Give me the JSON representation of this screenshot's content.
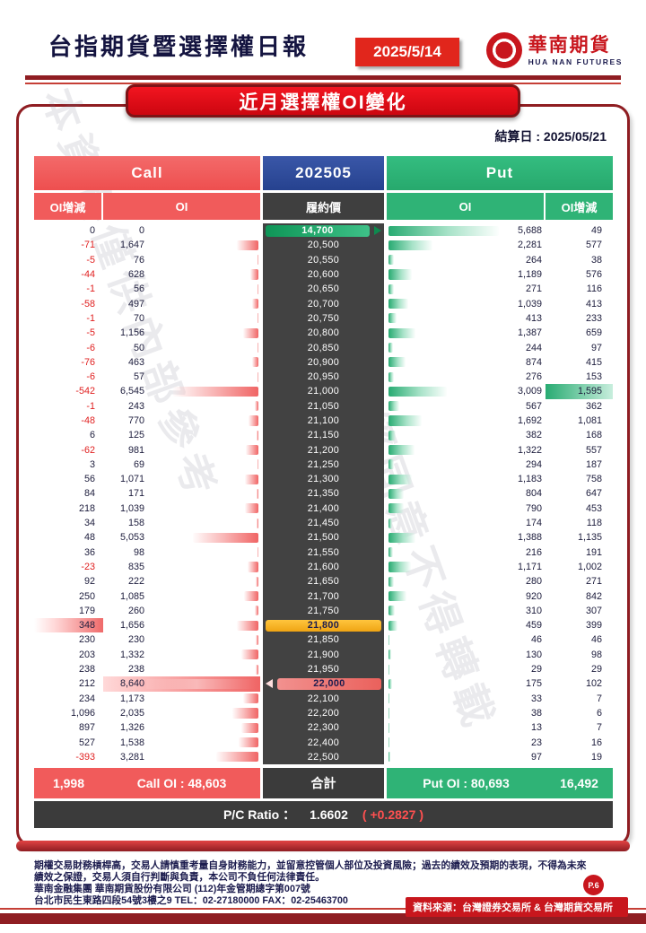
{
  "header": {
    "title": "台指期貨暨選擇權日報",
    "date": "2025/5/14",
    "logo_cn": "華南期貨",
    "logo_en": "HUA NAN FUTURES"
  },
  "banner": "近月選擇權OI變化",
  "settle_label": "結算日 : 2025/05/21",
  "watermarks": [
    "本資料僅供內部參考",
    "未經同意不得轉載"
  ],
  "table": {
    "call_header": "Call",
    "month_header": "202505",
    "put_header": "Put",
    "col_call_chg": "OI增減",
    "col_call_oi": "OI",
    "col_strike": "履約價",
    "col_put_oi": "OI",
    "col_put_chg": "OI增減",
    "rows": [
      {
        "cc": "0",
        "co": "0",
        "s": "14,700",
        "po": "5,688",
        "pc": "49",
        "sx": "green"
      },
      {
        "cc": "-71",
        "co": "1,647",
        "s": "20,500",
        "po": "2,281",
        "pc": "577"
      },
      {
        "cc": "-5",
        "co": "76",
        "s": "20,550",
        "po": "264",
        "pc": "38"
      },
      {
        "cc": "-44",
        "co": "628",
        "s": "20,600",
        "po": "1,189",
        "pc": "576"
      },
      {
        "cc": "-1",
        "co": "56",
        "s": "20,650",
        "po": "271",
        "pc": "116"
      },
      {
        "cc": "-58",
        "co": "497",
        "s": "20,700",
        "po": "1,039",
        "pc": "413"
      },
      {
        "cc": "-1",
        "co": "70",
        "s": "20,750",
        "po": "413",
        "pc": "233"
      },
      {
        "cc": "-5",
        "co": "1,156",
        "s": "20,800",
        "po": "1,387",
        "pc": "659"
      },
      {
        "cc": "-6",
        "co": "50",
        "s": "20,850",
        "po": "244",
        "pc": "97"
      },
      {
        "cc": "-76",
        "co": "463",
        "s": "20,900",
        "po": "874",
        "pc": "415"
      },
      {
        "cc": "-6",
        "co": "57",
        "s": "20,950",
        "po": "276",
        "pc": "153"
      },
      {
        "cc": "-542",
        "co": "6,545",
        "s": "21,000",
        "po": "3,009",
        "pc": "1,595",
        "pc_hl": true
      },
      {
        "cc": "-1",
        "co": "243",
        "s": "21,050",
        "po": "567",
        "pc": "362"
      },
      {
        "cc": "-48",
        "co": "770",
        "s": "21,100",
        "po": "1,692",
        "pc": "1,081"
      },
      {
        "cc": "6",
        "co": "125",
        "s": "21,150",
        "po": "382",
        "pc": "168"
      },
      {
        "cc": "-62",
        "co": "981",
        "s": "21,200",
        "po": "1,322",
        "pc": "557"
      },
      {
        "cc": "3",
        "co": "69",
        "s": "21,250",
        "po": "294",
        "pc": "187"
      },
      {
        "cc": "56",
        "co": "1,071",
        "s": "21,300",
        "po": "1,183",
        "pc": "758"
      },
      {
        "cc": "84",
        "co": "171",
        "s": "21,350",
        "po": "804",
        "pc": "647"
      },
      {
        "cc": "218",
        "co": "1,039",
        "s": "21,400",
        "po": "790",
        "pc": "453"
      },
      {
        "cc": "34",
        "co": "158",
        "s": "21,450",
        "po": "174",
        "pc": "118"
      },
      {
        "cc": "48",
        "co": "5,053",
        "s": "21,500",
        "po": "1,388",
        "pc": "1,135"
      },
      {
        "cc": "36",
        "co": "98",
        "s": "21,550",
        "po": "216",
        "pc": "191"
      },
      {
        "cc": "-23",
        "co": "835",
        "s": "21,600",
        "po": "1,171",
        "pc": "1,002"
      },
      {
        "cc": "92",
        "co": "222",
        "s": "21,650",
        "po": "280",
        "pc": "271"
      },
      {
        "cc": "250",
        "co": "1,085",
        "s": "21,700",
        "po": "920",
        "pc": "842"
      },
      {
        "cc": "179",
        "co": "260",
        "s": "21,750",
        "po": "310",
        "pc": "307"
      },
      {
        "cc": "348",
        "co": "1,656",
        "s": "21,800",
        "po": "459",
        "pc": "399",
        "cc_hl": true,
        "sx": "yellow"
      },
      {
        "cc": "230",
        "co": "230",
        "s": "21,850",
        "po": "46",
        "pc": "46"
      },
      {
        "cc": "203",
        "co": "1,332",
        "s": "21,900",
        "po": "130",
        "pc": "98"
      },
      {
        "cc": "238",
        "co": "238",
        "s": "21,950",
        "po": "29",
        "pc": "29"
      },
      {
        "cc": "212",
        "co": "8,640",
        "s": "22,000",
        "po": "175",
        "pc": "102",
        "co_hl": true,
        "sx": "red"
      },
      {
        "cc": "234",
        "co": "1,173",
        "s": "22,100",
        "po": "33",
        "pc": "7"
      },
      {
        "cc": "1,096",
        "co": "2,035",
        "s": "22,200",
        "po": "38",
        "pc": "6"
      },
      {
        "cc": "897",
        "co": "1,326",
        "s": "22,300",
        "po": "13",
        "pc": "7"
      },
      {
        "cc": "527",
        "co": "1,538",
        "s": "22,400",
        "po": "23",
        "pc": "16"
      },
      {
        "cc": "-393",
        "co": "3,281",
        "s": "22,500",
        "po": "97",
        "pc": "19"
      }
    ],
    "footer": {
      "call_chg_total": "1,998",
      "call_oi_total": "Call OI : 48,603",
      "sum_label": "合計",
      "put_oi_total": "Put OI : 80,693",
      "put_chg_total": "16,492"
    },
    "pc_ratio_label": "P/C Ratio ：",
    "pc_ratio_value": "1.6602",
    "pc_ratio_change": "( +0.2827 )"
  },
  "footer": {
    "disclaimer": "期權交易財務槓桿高，交易人請慎重考量自身財務能力，並留意控管個人部位及投資風險；過去的績效及預期的表現，不得為未來績效之保證，交易人須自行判斷與負責，本公司不負任何法律責任。",
    "company": "華南金融集團 華南期貨股份有限公司 (112)年金管期總字第007號",
    "address": "台北市民生東路四段54號3樓之9 TEL：02-27180000 FAX：02-25463700",
    "source": "資料來源：台灣證券交易所 & 台灣期貨交易所",
    "page": "P.6"
  }
}
